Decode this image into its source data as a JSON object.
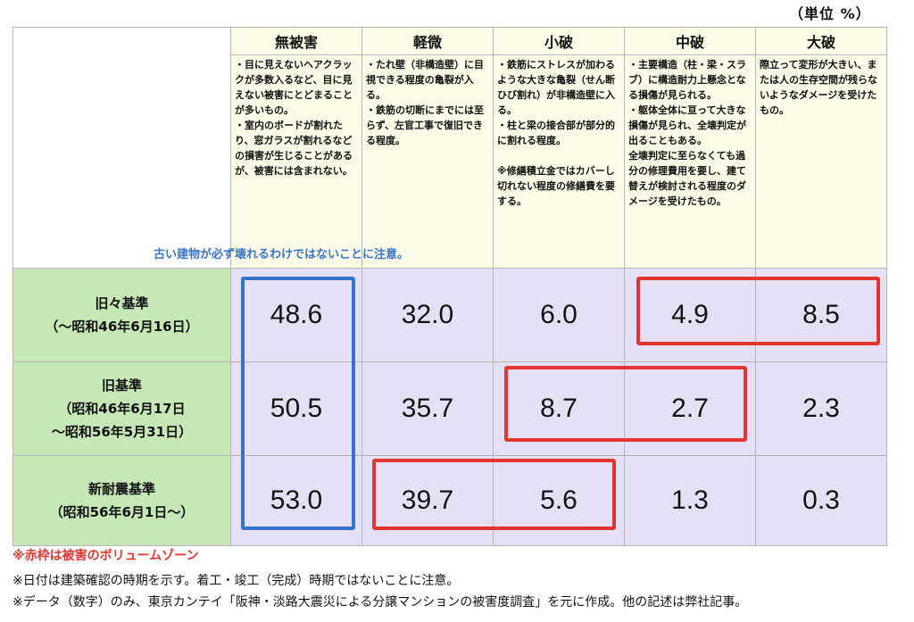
{
  "unit_label": "（単位 %）",
  "columns": [
    {
      "key": "none",
      "label": "無被害"
    },
    {
      "key": "slight",
      "label": "軽微"
    },
    {
      "key": "minor",
      "label": "小破"
    },
    {
      "key": "moderate",
      "label": "中破"
    },
    {
      "key": "severe",
      "label": "大破"
    }
  ],
  "descriptions": {
    "none": "・目に見えないヘアクラックが多数入るなど、目に見えない被害にとどまることが多いもの。\n・室内のボードが割れたり、窓ガラスが割れるなどの損害が生じることがあるが、被害には含まれない。",
    "slight": "・たれ壁（非構造壁）に目視できる程度の亀裂が入る。\n・鉄筋の切断にまでには至らず、左官工事で復旧できる程度。",
    "minor": "・鉄筋にストレスが加わるような大きな亀裂（せん断ひび割れ）が非構造壁に入る。\n・柱と梁の接合部が部分的に割れる程度。\n\n※修繕積立金ではカバーし切れない程度の修繕費を要する。",
    "moderate": "・主要構造（柱・梁・スラブ）に構造耐力上懸念となる損傷が見られる。\n・躯体全体に亘って大きな損傷が見られ、全壊判定が出ることもある。\n全壊判定に至らなくても過分の修理費用を要し、建て替えが検討される程度のダメージを受けたもの。",
    "severe": "際立って変形が大きい、または人の生存空間が残らないようなダメージを受けたもの。"
  },
  "note_blue": "古い建物が必ず壊れるわけではないことに注意。",
  "rows": [
    {
      "line1": "旧々基準",
      "line2": "（〜昭和46年6月16日）",
      "line3": "",
      "values": [
        "48.6",
        "32.0",
        "6.0",
        "4.9",
        "8.5"
      ]
    },
    {
      "line1": "旧基準",
      "line2": "（昭和46年6月17日",
      "line3": "〜昭和56年5月31日）",
      "values": [
        "50.5",
        "35.7",
        "8.7",
        "2.7",
        "2.3"
      ]
    },
    {
      "line1": "新耐震基準",
      "line2": "（昭和56年6月1日〜）",
      "line3": "",
      "values": [
        "53.0",
        "39.7",
        "5.6",
        "1.3",
        "0.3"
      ]
    }
  ],
  "footnotes": {
    "red_note": "※赤枠は被害のボリュームゾーン",
    "date_note": "※日付は建築確認の時期を示す。着工・竣工（完成）時期ではないことに注意。",
    "source_note": "※データ（数字）のみ、東京カンテイ「阪神・淡路大震災による分譲マンションの被害度調査」を元に作成。他の記述は弊社記事。"
  },
  "colors": {
    "header_bg": "#fbfbe7",
    "rowhead_bg": "#c6e8b6",
    "value_bg": "#e6e0f6",
    "highlight_red": "#e23530",
    "highlight_blue": "#3475c9"
  }
}
